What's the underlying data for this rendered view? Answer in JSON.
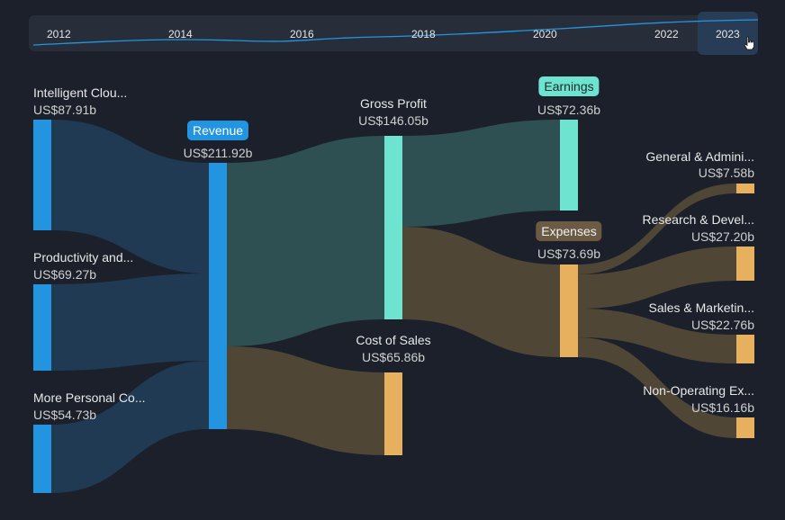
{
  "timeline": {
    "years": [
      "2012",
      "2014",
      "2016",
      "2018",
      "2020",
      "2022",
      "2023"
    ],
    "selected": "2023"
  },
  "nodes": {
    "intelligent_cloud": {
      "label": "Intelligent Clou...",
      "value": "US$87.91b"
    },
    "productivity": {
      "label": "Productivity and...",
      "value": "US$69.27b"
    },
    "more_personal": {
      "label": "More Personal Co...",
      "value": "US$54.73b"
    },
    "revenue": {
      "label": "Revenue",
      "value": "US$211.92b"
    },
    "gross_profit": {
      "label": "Gross Profit",
      "value": "US$146.05b"
    },
    "cost_of_sales": {
      "label": "Cost of Sales",
      "value": "US$65.86b"
    },
    "earnings": {
      "label": "Earnings",
      "value": "US$72.36b"
    },
    "expenses": {
      "label": "Expenses",
      "value": "US$73.69b"
    },
    "general_admin": {
      "label": "General & Admini...",
      "value": "US$7.58b"
    },
    "research_dev": {
      "label": "Research & Devel...",
      "value": "US$27.20b"
    },
    "sales_marketing": {
      "label": "Sales & Marketin...",
      "value": "US$22.76b"
    },
    "non_operating": {
      "label": "Non-Operating Ex...",
      "value": "US$16.16b"
    }
  },
  "colors": {
    "revenue": "#2394e0",
    "profit": "#6de3d0",
    "cost": "#e6b05e",
    "link_revenue": "#1f3a52",
    "link_profit": "#2e5052",
    "link_cost": "#4f4636"
  }
}
